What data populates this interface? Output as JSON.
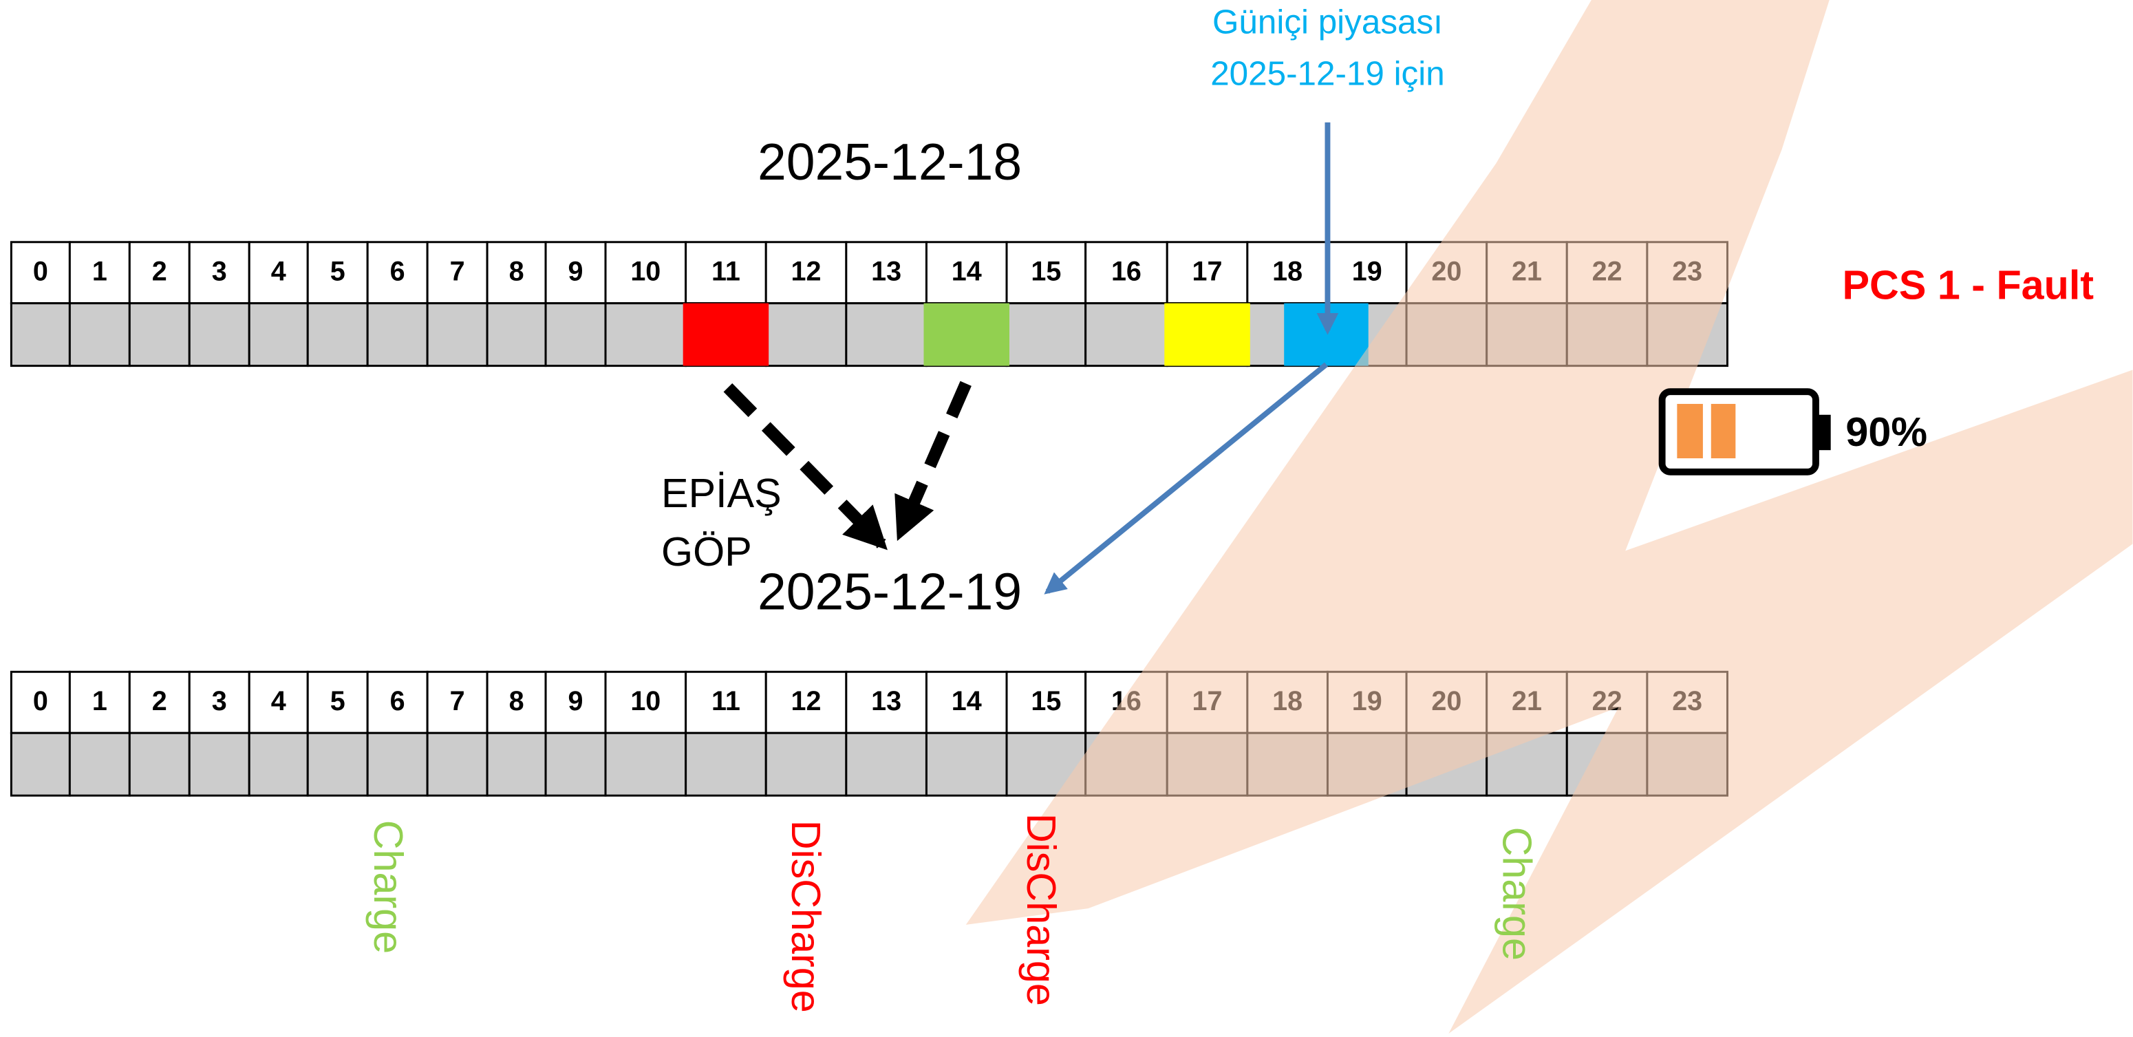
{
  "intraday_note": {
    "line1": "Güniçi piyasası",
    "line2": "2025-12-19 için"
  },
  "top_timeline": {
    "date": "2025-12-18"
  },
  "bottom_timeline": {
    "date": "2025-12-19"
  },
  "hours": [
    "0",
    "1",
    "2",
    "3",
    "4",
    "5",
    "6",
    "7",
    "8",
    "9",
    "10",
    "11",
    "12",
    "13",
    "14",
    "15",
    "16",
    "17",
    "18",
    "19",
    "20",
    "21",
    "22",
    "23"
  ],
  "market_label": {
    "line1": "EPİAŞ",
    "line2": "GÖP"
  },
  "status": "PCS 1 - Fault",
  "battery_level": "90%",
  "actions": [
    "Charge",
    "DisCharge",
    "DisCharge",
    "Charge"
  ]
}
